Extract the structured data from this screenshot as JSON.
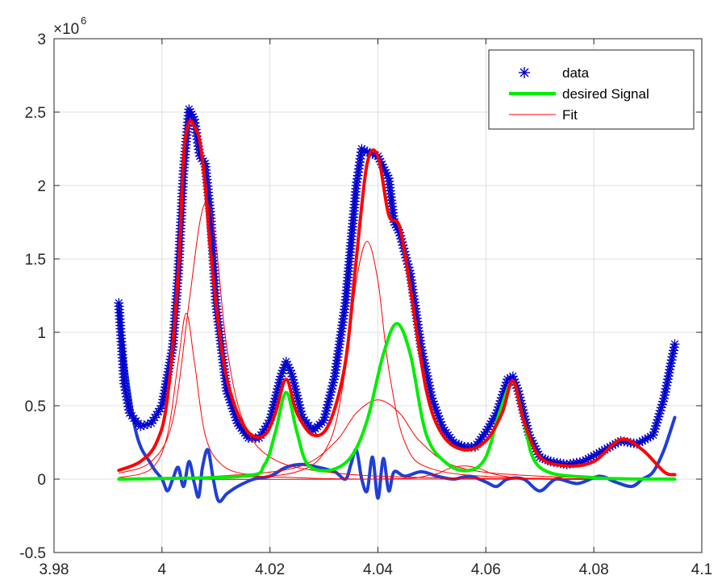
{
  "chart_data": {
    "type": "line",
    "title": "",
    "xlabel": "",
    "ylabel": "",
    "xlim": [
      3.98,
      4.1
    ],
    "ylim": [
      -0.5,
      3
    ],
    "y_exponent_label": "×10",
    "y_exponent_power": "6",
    "x_ticks": [
      3.98,
      4.0,
      4.02,
      4.04,
      4.06,
      4.08,
      4.1
    ],
    "x_tick_labels": [
      "3.98",
      "4",
      "4.02",
      "4.04",
      "4.06",
      "4.08",
      "4.1"
    ],
    "y_ticks": [
      -0.5,
      0,
      0.5,
      1,
      1.5,
      2,
      2.5,
      3
    ],
    "y_tick_labels": [
      "-0.5",
      "0",
      "0.5",
      "1",
      "1.5",
      "2",
      "2.5",
      "3"
    ],
    "grid": true,
    "legend_position": "top-right",
    "colors": {
      "data": "#0000cc",
      "desired": "#00ee00",
      "fit": "#ff0000",
      "residual": "#1f3fd6",
      "grid": "#dfdfdf",
      "axis": "#262626"
    },
    "legend": [
      {
        "label": "data",
        "style": "marker-asterisk",
        "color": "#0000cc"
      },
      {
        "label": "desired Signal",
        "style": "thick-line",
        "color": "#00ee00"
      },
      {
        "label": "Fit",
        "style": "thin-line",
        "color": "#ff0000"
      }
    ],
    "series": [
      {
        "name": "data",
        "style": "markers",
        "x": [
          3.992,
          3.993,
          3.994,
          3.996,
          3.998,
          4.0,
          4.002,
          4.003,
          4.004,
          4.005,
          4.006,
          4.007,
          4.008,
          4.009,
          4.01,
          4.012,
          4.014,
          4.016,
          4.018,
          4.02,
          4.022,
          4.023,
          4.024,
          4.026,
          4.028,
          4.03,
          4.032,
          4.034,
          4.036,
          4.037,
          4.038,
          4.04,
          4.042,
          4.043,
          4.044,
          4.046,
          4.048,
          4.05,
          4.052,
          4.054,
          4.056,
          4.058,
          4.06,
          4.062,
          4.064,
          4.065,
          4.066,
          4.068,
          4.07,
          4.072,
          4.075,
          4.078,
          4.082,
          4.085,
          4.088,
          4.091,
          4.093,
          4.095
        ],
        "y": [
          1.2,
          0.65,
          0.45,
          0.36,
          0.38,
          0.5,
          0.9,
          1.4,
          2.1,
          2.52,
          2.45,
          2.2,
          2.15,
          1.8,
          1.2,
          0.6,
          0.38,
          0.28,
          0.28,
          0.4,
          0.7,
          0.8,
          0.72,
          0.42,
          0.33,
          0.4,
          0.7,
          1.2,
          2.0,
          2.25,
          2.23,
          2.2,
          2.05,
          1.75,
          1.68,
          1.4,
          0.9,
          0.55,
          0.35,
          0.25,
          0.22,
          0.22,
          0.32,
          0.45,
          0.68,
          0.7,
          0.6,
          0.3,
          0.15,
          0.12,
          0.1,
          0.12,
          0.2,
          0.26,
          0.24,
          0.3,
          0.55,
          0.92
        ]
      },
      {
        "name": "desired Signal",
        "style": "thick-line",
        "x": [
          3.992,
          4.015,
          4.019,
          4.021,
          4.023,
          4.025,
          4.027,
          4.031,
          4.035,
          4.038,
          4.041,
          4.0435,
          4.046,
          4.049,
          4.053,
          4.057,
          4.06,
          4.0625,
          4.065,
          4.067,
          4.07,
          4.08,
          4.095
        ],
        "y": [
          0.0,
          0.02,
          0.1,
          0.32,
          0.59,
          0.32,
          0.1,
          0.06,
          0.15,
          0.4,
          0.85,
          1.06,
          0.85,
          0.3,
          0.1,
          0.06,
          0.15,
          0.45,
          0.66,
          0.4,
          0.08,
          0.01,
          0.0
        ]
      },
      {
        "name": "Fit",
        "style": "thick-line",
        "x": [
          3.992,
          3.996,
          3.999,
          4.001,
          4.003,
          4.004,
          4.005,
          4.006,
          4.007,
          4.008,
          4.009,
          4.011,
          4.013,
          4.016,
          4.019,
          4.021,
          4.023,
          4.025,
          4.028,
          4.031,
          4.034,
          4.036,
          4.038,
          4.04,
          4.042,
          4.044,
          4.046,
          4.049,
          4.052,
          4.056,
          4.06,
          4.063,
          4.065,
          4.067,
          4.07,
          4.075,
          4.08,
          4.085,
          4.089,
          4.093,
          4.095
        ],
        "y": [
          0.06,
          0.12,
          0.25,
          0.55,
          1.4,
          2.2,
          2.43,
          2.4,
          2.3,
          2.0,
          1.55,
          0.9,
          0.55,
          0.32,
          0.3,
          0.45,
          0.68,
          0.45,
          0.3,
          0.38,
          0.8,
          1.5,
          2.15,
          2.2,
          1.8,
          1.72,
          1.3,
          0.6,
          0.3,
          0.2,
          0.26,
          0.45,
          0.67,
          0.4,
          0.15,
          0.09,
          0.12,
          0.27,
          0.2,
          0.05,
          0.03
        ]
      },
      {
        "name": "",
        "style": "thin-line",
        "color": "#ff0000",
        "x": [
          3.992,
          3.998,
          4.001,
          4.003,
          4.0045,
          4.006,
          4.008,
          4.011,
          4.016,
          4.025,
          4.04,
          4.095
        ],
        "y": [
          0.01,
          0.07,
          0.3,
          0.8,
          1.13,
          0.8,
          0.3,
          0.1,
          0.03,
          0.01,
          0.0,
          0.0
        ]
      },
      {
        "name": "",
        "style": "thin-line",
        "color": "#ff0000",
        "x": [
          3.992,
          3.998,
          4.002,
          4.005,
          4.007,
          4.0085,
          4.01,
          4.012,
          4.015,
          4.02,
          4.03,
          4.05,
          4.095
        ],
        "y": [
          0.04,
          0.12,
          0.4,
          1.2,
          1.75,
          1.88,
          1.6,
          0.9,
          0.4,
          0.15,
          0.05,
          0.01,
          0.0
        ]
      },
      {
        "name": "",
        "style": "thin-line",
        "color": "#ff0000",
        "x": [
          3.992,
          4.01,
          4.025,
          4.031,
          4.034,
          4.036,
          4.038,
          4.04,
          4.042,
          4.045,
          4.05,
          4.065,
          4.095
        ],
        "y": [
          0.0,
          0.01,
          0.05,
          0.25,
          0.75,
          1.35,
          1.62,
          1.35,
          0.75,
          0.25,
          0.07,
          0.01,
          0.0
        ]
      },
      {
        "name": "",
        "style": "thin-line",
        "color": "#ff0000",
        "x": [
          3.992,
          4.01,
          4.025,
          4.032,
          4.036,
          4.04,
          4.044,
          4.048,
          4.055,
          4.07,
          4.095
        ],
        "y": [
          0.0,
          0.02,
          0.08,
          0.25,
          0.45,
          0.54,
          0.45,
          0.25,
          0.08,
          0.02,
          0.0
        ]
      },
      {
        "name": "",
        "style": "thin-line",
        "color": "#ff0000",
        "x": [
          3.992,
          4.04,
          4.05,
          4.053,
          4.056,
          4.059,
          4.062,
          4.07,
          4.095
        ],
        "y": [
          0.0,
          0.0,
          0.03,
          0.07,
          0.09,
          0.07,
          0.03,
          0.0,
          0.0
        ]
      },
      {
        "name": "",
        "style": "residual-line",
        "color": "#1f3fd6",
        "x": [
          3.992,
          3.995,
          3.998,
          4.0,
          4.001,
          4.002,
          4.003,
          4.004,
          4.005,
          4.006,
          4.0068,
          4.0075,
          4.0085,
          4.0095,
          4.0105,
          4.012,
          4.014,
          4.017,
          4.02,
          4.023,
          4.026,
          4.029,
          4.032,
          4.034,
          4.035,
          4.036,
          4.037,
          4.038,
          4.039,
          4.04,
          4.041,
          4.042,
          4.043,
          4.045,
          4.048,
          4.051,
          4.054,
          4.057,
          4.06,
          4.062,
          4.064,
          4.067,
          4.07,
          4.073,
          4.077,
          4.081,
          4.084,
          4.087,
          4.089,
          4.091,
          4.093,
          4.095
        ],
        "y": [
          1.15,
          0.35,
          0.1,
          0.0,
          -0.08,
          0.0,
          0.08,
          -0.05,
          0.12,
          -0.03,
          -0.12,
          0.08,
          0.2,
          0.0,
          -0.15,
          -0.1,
          -0.05,
          0.0,
          0.02,
          0.08,
          0.1,
          0.08,
          0.05,
          0.0,
          0.1,
          0.2,
          0.0,
          -0.08,
          0.15,
          -0.13,
          0.14,
          -0.08,
          0.05,
          0.02,
          0.05,
          0.02,
          0.0,
          0.02,
          -0.02,
          -0.05,
          0.0,
          0.0,
          -0.08,
          0.0,
          -0.03,
          0.02,
          -0.02,
          -0.05,
          0.0,
          0.05,
          0.2,
          0.42
        ]
      }
    ]
  }
}
